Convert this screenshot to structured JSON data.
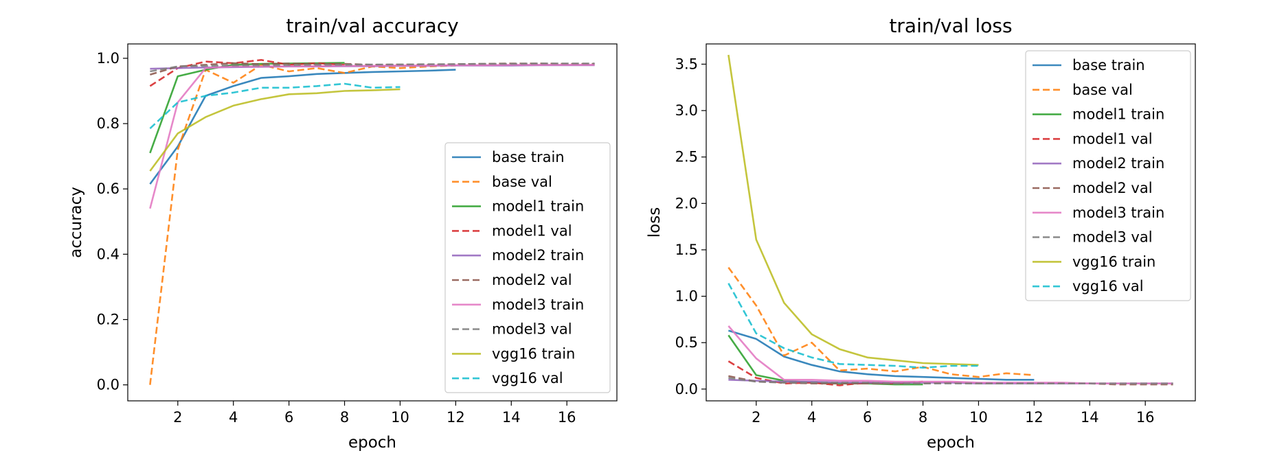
{
  "chart_data": [
    {
      "type": "line",
      "title": "train/val accuracy",
      "xlabel": "epoch",
      "ylabel": "accuracy",
      "xlim": [
        0.2,
        17.8
      ],
      "ylim": [
        -0.049,
        1.044
      ],
      "xticks": [
        2,
        4,
        6,
        8,
        10,
        12,
        14,
        16
      ],
      "yticks": [
        0.0,
        0.2,
        0.4,
        0.6,
        0.8,
        1.0
      ],
      "xtick_labels": [
        "2",
        "4",
        "6",
        "8",
        "10",
        "12",
        "14",
        "16"
      ],
      "ytick_labels": [
        "0.0",
        "0.2",
        "0.4",
        "0.6",
        "0.8",
        "1.0"
      ],
      "legend_position": "lower-right",
      "grid": false,
      "series": [
        {
          "name": "base train",
          "color": "#1f77b4",
          "dashed": false,
          "x": [
            1,
            2,
            3,
            4,
            5,
            6,
            7,
            8,
            9,
            10,
            11,
            12
          ],
          "y": [
            0.615,
            0.73,
            0.885,
            0.915,
            0.94,
            0.945,
            0.952,
            0.955,
            0.958,
            0.96,
            0.962,
            0.965
          ]
        },
        {
          "name": "base val",
          "color": "#ff7f0e",
          "dashed": true,
          "x": [
            1,
            2,
            3,
            4,
            5,
            6,
            7,
            8,
            9,
            10,
            11,
            12
          ],
          "y": [
            0.0,
            0.72,
            0.965,
            0.925,
            0.98,
            0.96,
            0.97,
            0.955,
            0.975,
            0.97,
            0.975,
            0.978
          ]
        },
        {
          "name": "model1 train",
          "color": "#2ca02c",
          "dashed": false,
          "x": [
            1,
            2,
            3,
            4,
            5,
            6,
            7,
            8
          ],
          "y": [
            0.71,
            0.945,
            0.965,
            0.98,
            0.983,
            0.984,
            0.985,
            0.986
          ]
        },
        {
          "name": "model1 val",
          "color": "#d62728",
          "dashed": true,
          "x": [
            1,
            2,
            3,
            4,
            5,
            6,
            7,
            8
          ],
          "y": [
            0.915,
            0.97,
            0.99,
            0.985,
            0.995,
            0.98,
            0.985,
            0.98
          ]
        },
        {
          "name": "model2 train",
          "color": "#9467bd",
          "dashed": false,
          "x": [
            1,
            2,
            3,
            4,
            5,
            6,
            7,
            8,
            9,
            10,
            11,
            12,
            13,
            14,
            15,
            16,
            17
          ],
          "y": [
            0.968,
            0.97,
            0.972,
            0.973,
            0.974,
            0.975,
            0.975,
            0.976,
            0.976,
            0.977,
            0.977,
            0.978,
            0.978,
            0.978,
            0.979,
            0.979,
            0.979
          ]
        },
        {
          "name": "model2 val",
          "color": "#8c564b",
          "dashed": true,
          "x": [
            1,
            2,
            3,
            4,
            5,
            6,
            7,
            8,
            9,
            10,
            11,
            12,
            13,
            14,
            15,
            16,
            17
          ],
          "y": [
            0.95,
            0.975,
            0.98,
            0.985,
            0.982,
            0.984,
            0.982,
            0.983,
            0.98,
            0.981,
            0.98,
            0.982,
            0.983,
            0.984,
            0.984,
            0.983,
            0.983
          ]
        },
        {
          "name": "model3 train",
          "color": "#e377c2",
          "dashed": false,
          "x": [
            1,
            2,
            3,
            4,
            5,
            6,
            7,
            8,
            9,
            10,
            11,
            12,
            13,
            14,
            15,
            16,
            17
          ],
          "y": [
            0.54,
            0.865,
            0.97,
            0.975,
            0.975,
            0.976,
            0.976,
            0.977,
            0.977,
            0.978,
            0.978,
            0.979,
            0.979,
            0.98,
            0.98,
            0.98,
            0.98
          ]
        },
        {
          "name": "model3 val",
          "color": "#7f7f7f",
          "dashed": true,
          "x": [
            1,
            2,
            3,
            4,
            5,
            6,
            7,
            8,
            9,
            10,
            11,
            12,
            13,
            14,
            15,
            16,
            17
          ],
          "y": [
            0.96,
            0.975,
            0.977,
            0.978,
            0.978,
            0.979,
            0.98,
            0.98,
            0.981,
            0.981,
            0.982,
            0.982,
            0.983,
            0.983,
            0.984,
            0.984,
            0.984
          ]
        },
        {
          "name": "vgg16 train",
          "color": "#bcbd22",
          "dashed": false,
          "x": [
            1,
            2,
            3,
            4,
            5,
            6,
            7,
            8,
            9,
            10
          ],
          "y": [
            0.655,
            0.77,
            0.82,
            0.855,
            0.875,
            0.89,
            0.893,
            0.9,
            0.902,
            0.905
          ]
        },
        {
          "name": "vgg16 val",
          "color": "#17becf",
          "dashed": true,
          "x": [
            1,
            2,
            3,
            4,
            5,
            6,
            7,
            8,
            9,
            10
          ],
          "y": [
            0.785,
            0.865,
            0.885,
            0.895,
            0.91,
            0.91,
            0.915,
            0.922,
            0.91,
            0.912
          ]
        }
      ]
    },
    {
      "type": "line",
      "title": "train/val loss",
      "xlabel": "epoch",
      "ylabel": "loss",
      "xlim": [
        0.2,
        17.8
      ],
      "ylim": [
        -0.127,
        3.718
      ],
      "xticks": [
        2,
        4,
        6,
        8,
        10,
        12,
        14,
        16
      ],
      "yticks": [
        0.0,
        0.5,
        1.0,
        1.5,
        2.0,
        2.5,
        3.0,
        3.5
      ],
      "xtick_labels": [
        "2",
        "4",
        "6",
        "8",
        "10",
        "12",
        "14",
        "16"
      ],
      "ytick_labels": [
        "0.0",
        "0.5",
        "1.0",
        "1.5",
        "2.0",
        "2.5",
        "3.0",
        "3.5"
      ],
      "legend_position": "upper-right",
      "grid": false,
      "series": [
        {
          "name": "base train",
          "color": "#1f77b4",
          "dashed": false,
          "x": [
            1,
            2,
            3,
            4,
            5,
            6,
            7,
            8,
            9,
            10,
            11,
            12
          ],
          "y": [
            0.63,
            0.54,
            0.35,
            0.26,
            0.19,
            0.16,
            0.14,
            0.13,
            0.12,
            0.11,
            0.1,
            0.1
          ]
        },
        {
          "name": "base val",
          "color": "#ff7f0e",
          "dashed": true,
          "x": [
            1,
            2,
            3,
            4,
            5,
            6,
            7,
            8,
            9,
            10,
            11,
            12
          ],
          "y": [
            1.31,
            0.9,
            0.36,
            0.5,
            0.2,
            0.22,
            0.19,
            0.24,
            0.16,
            0.13,
            0.17,
            0.15
          ]
        },
        {
          "name": "model1 train",
          "color": "#2ca02c",
          "dashed": false,
          "x": [
            1,
            2,
            3,
            4,
            5,
            6,
            7,
            8
          ],
          "y": [
            0.58,
            0.15,
            0.09,
            0.07,
            0.06,
            0.06,
            0.05,
            0.05
          ]
        },
        {
          "name": "model1 val",
          "color": "#d62728",
          "dashed": true,
          "x": [
            1,
            2,
            3,
            4,
            5,
            6,
            7,
            8
          ],
          "y": [
            0.3,
            0.12,
            0.06,
            0.07,
            0.04,
            0.07,
            0.06,
            0.08
          ]
        },
        {
          "name": "model2 train",
          "color": "#9467bd",
          "dashed": false,
          "x": [
            1,
            2,
            3,
            4,
            5,
            6,
            7,
            8,
            9,
            10,
            11,
            12,
            13,
            14,
            15,
            16,
            17
          ],
          "y": [
            0.1,
            0.09,
            0.08,
            0.08,
            0.07,
            0.07,
            0.07,
            0.07,
            0.07,
            0.06,
            0.06,
            0.06,
            0.06,
            0.06,
            0.06,
            0.06,
            0.06
          ]
        },
        {
          "name": "model2 val",
          "color": "#8c564b",
          "dashed": true,
          "x": [
            1,
            2,
            3,
            4,
            5,
            6,
            7,
            8,
            9,
            10,
            11,
            12,
            13,
            14,
            15,
            16,
            17
          ],
          "y": [
            0.14,
            0.08,
            0.07,
            0.06,
            0.06,
            0.06,
            0.06,
            0.06,
            0.07,
            0.06,
            0.06,
            0.06,
            0.06,
            0.06,
            0.05,
            0.05,
            0.05
          ]
        },
        {
          "name": "model3 train",
          "color": "#e377c2",
          "dashed": false,
          "x": [
            1,
            2,
            3,
            4,
            5,
            6,
            7,
            8,
            9,
            10,
            11,
            12,
            13,
            14,
            15,
            16,
            17
          ],
          "y": [
            0.68,
            0.33,
            0.1,
            0.1,
            0.09,
            0.09,
            0.08,
            0.08,
            0.08,
            0.07,
            0.07,
            0.07,
            0.07,
            0.06,
            0.06,
            0.06,
            0.06
          ]
        },
        {
          "name": "model3 val",
          "color": "#7f7f7f",
          "dashed": true,
          "x": [
            1,
            2,
            3,
            4,
            5,
            6,
            7,
            8,
            9,
            10,
            11,
            12,
            13,
            14,
            15,
            16,
            17
          ],
          "y": [
            0.12,
            0.08,
            0.07,
            0.07,
            0.07,
            0.07,
            0.06,
            0.06,
            0.06,
            0.06,
            0.06,
            0.06,
            0.06,
            0.06,
            0.06,
            0.06,
            0.06
          ]
        },
        {
          "name": "vgg16 train",
          "color": "#bcbd22",
          "dashed": false,
          "x": [
            1,
            2,
            3,
            4,
            5,
            6,
            7,
            8,
            9,
            10
          ],
          "y": [
            3.6,
            1.61,
            0.93,
            0.59,
            0.43,
            0.34,
            0.31,
            0.28,
            0.27,
            0.26
          ]
        },
        {
          "name": "vgg16 val",
          "color": "#17becf",
          "dashed": true,
          "x": [
            1,
            2,
            3,
            4,
            5,
            6,
            7,
            8,
            9,
            10
          ],
          "y": [
            1.14,
            0.6,
            0.44,
            0.34,
            0.27,
            0.26,
            0.25,
            0.23,
            0.25,
            0.25
          ]
        }
      ]
    }
  ]
}
